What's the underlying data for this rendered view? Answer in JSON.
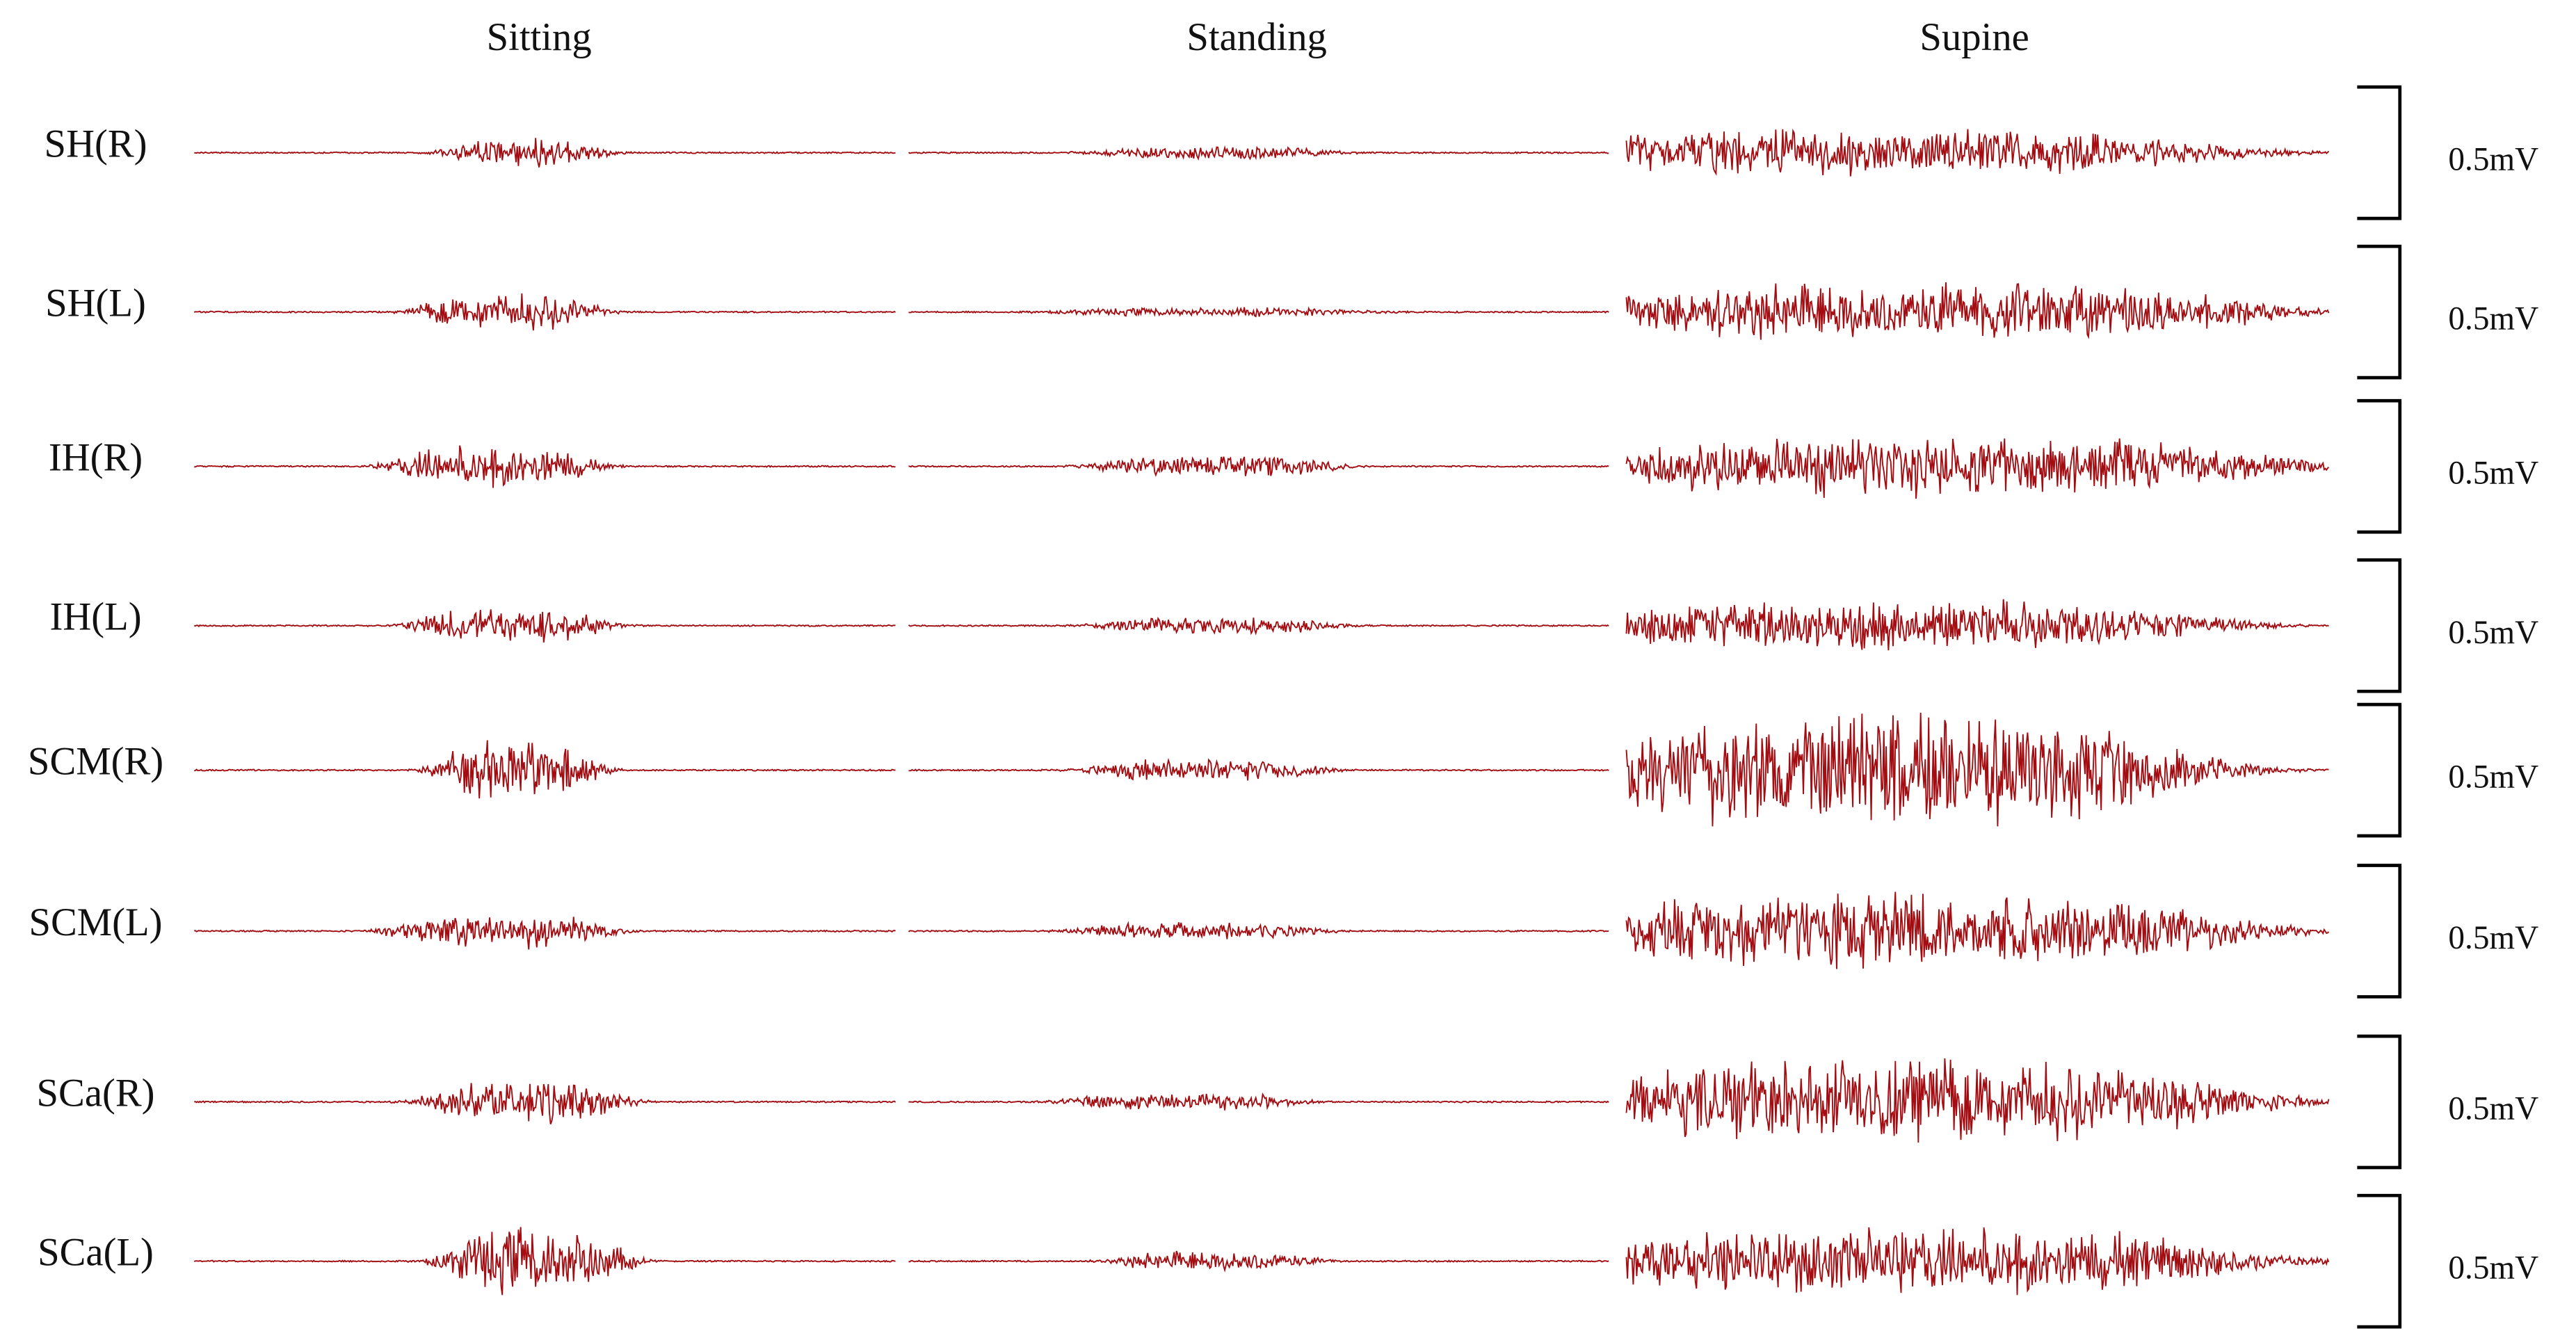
{
  "columns": [
    "Sitting",
    "Standing",
    "Supine"
  ],
  "rows": [
    {
      "label": "SH(R)",
      "scale": "0.5mV"
    },
    {
      "label": "SH(L)",
      "scale": "0.5mV"
    },
    {
      "label": "IH(R)",
      "scale": "0.5mV"
    },
    {
      "label": "IH(L)",
      "scale": "0.5mV"
    },
    {
      "label": "SCM(R)",
      "scale": "0.5mV"
    },
    {
      "label": "SCM(L)",
      "scale": "0.5mV"
    },
    {
      "label": "SCa(R)",
      "scale": "0.5mV"
    },
    {
      "label": "SCa(L)",
      "scale": "0.5mV"
    }
  ]
}
